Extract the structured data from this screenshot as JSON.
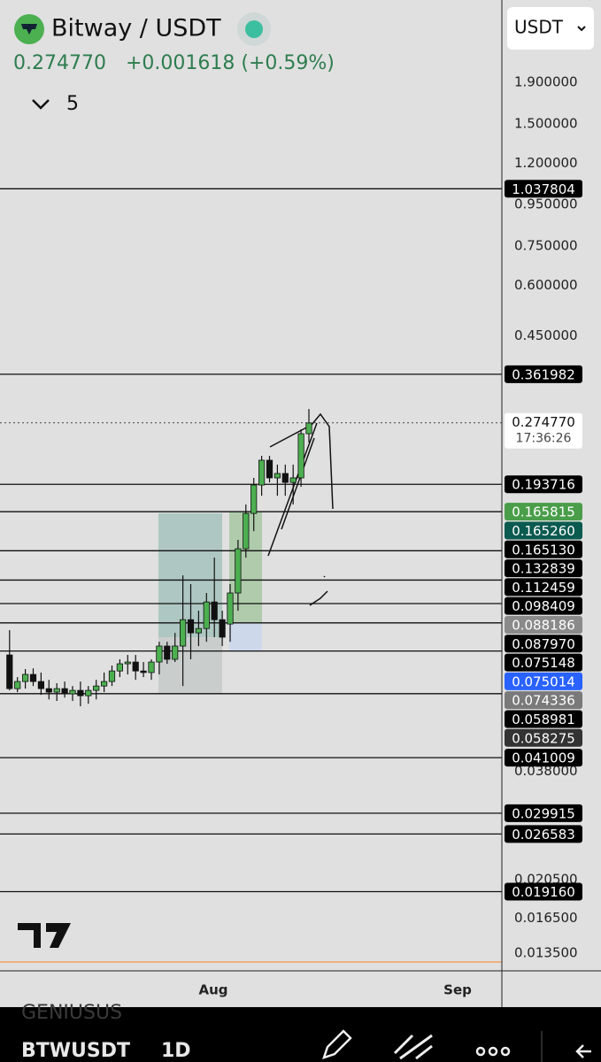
{
  "header": {
    "symbol": "Bitway / USDT",
    "price": "0.274770",
    "change": "+0.001618 (+0.59%)",
    "indicator_count": "5",
    "currency": "USDT"
  },
  "chart_data": {
    "type": "candlestick",
    "log_scale": true,
    "ylim": [
      0.01222,
      3.032
    ],
    "yticks": [
      {
        "value": 1.9,
        "label": "1.900000"
      },
      {
        "value": 1.5,
        "label": "1.500000"
      },
      {
        "value": 1.2,
        "label": "1.200000"
      },
      {
        "value": 0.95,
        "label": "0.950000"
      },
      {
        "value": 0.75,
        "label": "0.750000"
      },
      {
        "value": 0.6,
        "label": "0.600000"
      },
      {
        "value": 0.45,
        "label": "0.450000"
      },
      {
        "value": 0.038,
        "label": "0.038000"
      },
      {
        "value": 0.0205,
        "label": "0.020500"
      },
      {
        "value": 0.0165,
        "label": "0.016500"
      },
      {
        "value": 0.0135,
        "label": "0.013500"
      }
    ],
    "x_labels": [
      "Aug",
      "Sep"
    ],
    "up_color": "#4caf50",
    "down_color": "#111111",
    "candles": {
      "open": [
        0.0735,
        0.0607,
        0.0632,
        0.0658,
        0.0632,
        0.0607,
        0.0595,
        0.0607,
        0.0589,
        0.0601,
        0.0583,
        0.0601,
        0.0616,
        0.0632,
        0.0671,
        0.0699,
        0.0706,
        0.0671,
        0.0665,
        0.0706,
        0.0773,
        0.0717,
        0.0773,
        0.0898,
        0.0833,
        0.0854,
        0.0993,
        0.0898,
        0.0876,
        0.1045,
        0.1343,
        0.1642,
        0.1929,
        0.2221,
        0.2009,
        0.206,
        0.1958,
        0.2009,
        0.2582
      ],
      "high": [
        0.0846,
        0.0648,
        0.0678,
        0.0681,
        0.0665,
        0.0638,
        0.0626,
        0.0632,
        0.0616,
        0.0632,
        0.0616,
        0.0638,
        0.0665,
        0.0692,
        0.0717,
        0.0735,
        0.0735,
        0.0706,
        0.0717,
        0.0792,
        0.0792,
        0.0833,
        0.1155,
        0.1099,
        0.0945,
        0.1045,
        0.1277,
        0.0945,
        0.1099,
        0.1413,
        0.1727,
        0.2009,
        0.2277,
        0.2277,
        0.2166,
        0.2166,
        0.2166,
        0.2647,
        0.297
      ],
      "low": [
        0.0601,
        0.0595,
        0.0607,
        0.0616,
        0.0586,
        0.0571,
        0.0566,
        0.0577,
        0.0566,
        0.0549,
        0.0557,
        0.0571,
        0.0595,
        0.0616,
        0.0648,
        0.0658,
        0.0638,
        0.0648,
        0.0638,
        0.0658,
        0.0699,
        0.0706,
        0.0616,
        0.0717,
        0.0773,
        0.0792,
        0.0813,
        0.0773,
        0.0792,
        0.0945,
        0.1277,
        0.1485,
        0.1816,
        0.1958,
        0.1816,
        0.1816,
        0.1727,
        0.191,
        0.2456
      ],
      "close": [
        0.0607,
        0.0632,
        0.0658,
        0.0632,
        0.0607,
        0.0595,
        0.0607,
        0.0589,
        0.0601,
        0.0583,
        0.0601,
        0.0616,
        0.0632,
        0.0671,
        0.0699,
        0.0706,
        0.0671,
        0.0665,
        0.0706,
        0.0773,
        0.0717,
        0.0773,
        0.0898,
        0.0833,
        0.0854,
        0.0993,
        0.0898,
        0.0813,
        0.1045,
        0.1343,
        0.1642,
        0.1929,
        0.2221,
        0.2009,
        0.206,
        0.1958,
        0.2009,
        0.2582,
        0.2744
      ]
    },
    "last_price": {
      "value": 0.27477,
      "label": "0.274770"
    },
    "countdown": "17:36:26",
    "levels": [
      {
        "value": 1.037804,
        "label": "1.037804",
        "line": true,
        "color": "#000000"
      },
      {
        "value": 0.361982,
        "label": "0.361982",
        "line": true,
        "color": "#000000"
      },
      {
        "value": 0.193716,
        "label": "0.193716",
        "line": true,
        "color": "#000000"
      },
      {
        "value": 0.165815,
        "label": "0.165815",
        "line": true,
        "color": "#4a9e4a"
      },
      {
        "value": 0.16526,
        "label": "0.165260",
        "line": false,
        "color": "#0b5a4f"
      },
      {
        "value": 0.16513,
        "label": "0.165130",
        "line": false,
        "color": "#000000"
      },
      {
        "value": 0.132839,
        "label": "0.132839",
        "line": true,
        "color": "#000000"
      },
      {
        "value": 0.112459,
        "label": "0.112459",
        "line": true,
        "color": "#000000"
      },
      {
        "value": 0.098409,
        "label": "0.098409",
        "line": true,
        "color": "#000000"
      },
      {
        "value": 0.088186,
        "label": "0.088186",
        "line": true,
        "color": "#8a8a8a"
      },
      {
        "value": 0.08797,
        "label": "0.087970",
        "line": false,
        "color": "#000000"
      },
      {
        "value": 0.075148,
        "label": "0.075148",
        "line": true,
        "color": "#000000"
      },
      {
        "value": 0.075014,
        "label": "0.075014",
        "line": false,
        "color": "#2962ff"
      },
      {
        "value": 0.074336,
        "label": "0.074336",
        "line": false,
        "color": "#7a7a7a"
      },
      {
        "value": 0.058981,
        "label": "0.058981",
        "line": true,
        "color": "#000000"
      },
      {
        "value": 0.058275,
        "label": "0.058275",
        "line": false,
        "color": "#333333"
      },
      {
        "value": 0.041009,
        "label": "0.041009",
        "line": true,
        "color": "#000000"
      },
      {
        "value": 0.029915,
        "label": "0.029915",
        "line": true,
        "color": "#000000"
      },
      {
        "value": 0.026583,
        "label": "0.026583",
        "line": true,
        "color": "#000000"
      },
      {
        "value": 0.01916,
        "label": "0.019160",
        "line": true,
        "color": "#000000"
      }
    ]
  },
  "footer": {
    "symbol": "BTWUSDT",
    "interval": "1D",
    "watermark": "GENIUSUS"
  }
}
